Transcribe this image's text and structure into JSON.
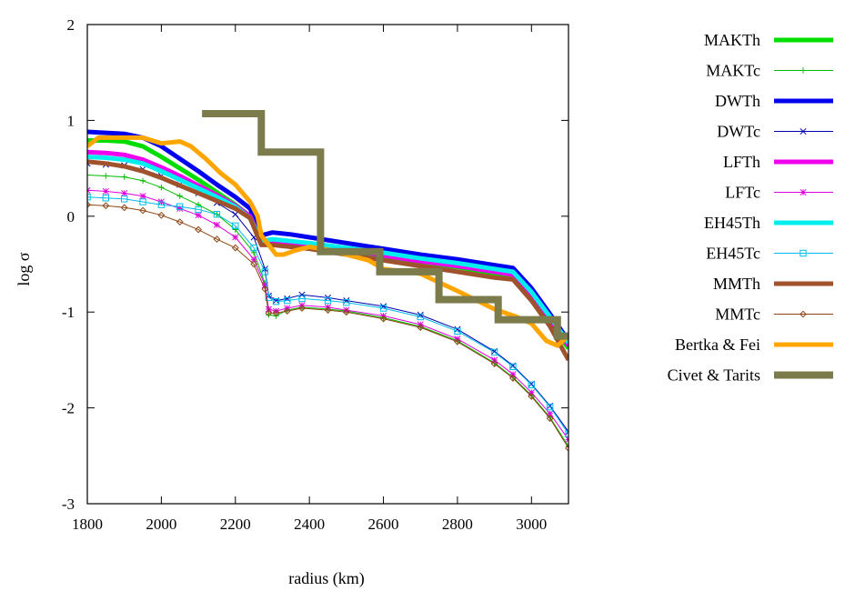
{
  "chart_data": {
    "type": "line",
    "xlabel": "radius (km)",
    "ylabel": "log σ",
    "xlim": [
      1800,
      3100
    ],
    "ylim": [
      -3,
      2
    ],
    "xticks": [
      1800,
      2000,
      2200,
      2400,
      2600,
      2800,
      3000
    ],
    "yticks": [
      -3,
      -2,
      -1,
      0,
      1,
      2
    ],
    "grid": false,
    "legend_position": "right",
    "series": [
      {
        "name": "MAKTh",
        "color": "#00dd00",
        "width": 5,
        "marker": "none",
        "points": [
          [
            1800,
            0.79
          ],
          [
            1850,
            0.79
          ],
          [
            1900,
            0.78
          ],
          [
            1950,
            0.73
          ],
          [
            2000,
            0.62
          ],
          [
            2050,
            0.5
          ],
          [
            2100,
            0.38
          ],
          [
            2150,
            0.25
          ],
          [
            2200,
            0.12
          ],
          [
            2240,
            0.0
          ],
          [
            2270,
            -0.26
          ],
          [
            2300,
            -0.28
          ],
          [
            2350,
            -0.28
          ],
          [
            2400,
            -0.3
          ],
          [
            2500,
            -0.36
          ],
          [
            2600,
            -0.42
          ],
          [
            2700,
            -0.48
          ],
          [
            2800,
            -0.53
          ],
          [
            2900,
            -0.6
          ],
          [
            2950,
            -0.63
          ],
          [
            3000,
            -0.85
          ],
          [
            3050,
            -1.1
          ],
          [
            3100,
            -1.38
          ]
        ]
      },
      {
        "name": "MAKTc",
        "color": "#00bb00",
        "width": 1,
        "marker": "plus",
        "points": [
          [
            1800,
            0.43
          ],
          [
            1850,
            0.42
          ],
          [
            1900,
            0.41
          ],
          [
            1950,
            0.37
          ],
          [
            2000,
            0.3
          ],
          [
            2050,
            0.21
          ],
          [
            2100,
            0.12
          ],
          [
            2150,
            0.02
          ],
          [
            2200,
            -0.14
          ],
          [
            2250,
            -0.38
          ],
          [
            2280,
            -0.7
          ],
          [
            2290,
            -1.03
          ],
          [
            2310,
            -1.04
          ],
          [
            2340,
            -0.98
          ],
          [
            2380,
            -0.95
          ],
          [
            2450,
            -0.97
          ],
          [
            2500,
            -0.99
          ],
          [
            2600,
            -1.06
          ],
          [
            2700,
            -1.15
          ],
          [
            2800,
            -1.3
          ],
          [
            2900,
            -1.53
          ],
          [
            2950,
            -1.68
          ],
          [
            3000,
            -1.87
          ],
          [
            3050,
            -2.1
          ],
          [
            3100,
            -2.4
          ]
        ]
      },
      {
        "name": "DWTh",
        "color": "#0000ee",
        "width": 5,
        "marker": "none",
        "points": [
          [
            1800,
            0.88
          ],
          [
            1850,
            0.87
          ],
          [
            1900,
            0.86
          ],
          [
            1950,
            0.82
          ],
          [
            2000,
            0.73
          ],
          [
            2050,
            0.6
          ],
          [
            2100,
            0.47
          ],
          [
            2150,
            0.33
          ],
          [
            2200,
            0.2
          ],
          [
            2240,
            0.08
          ],
          [
            2270,
            -0.2
          ],
          [
            2300,
            -0.17
          ],
          [
            2350,
            -0.19
          ],
          [
            2400,
            -0.22
          ],
          [
            2500,
            -0.28
          ],
          [
            2600,
            -0.34
          ],
          [
            2700,
            -0.4
          ],
          [
            2800,
            -0.45
          ],
          [
            2900,
            -0.51
          ],
          [
            2950,
            -0.54
          ],
          [
            3000,
            -0.75
          ],
          [
            3050,
            -1.02
          ],
          [
            3100,
            -1.3
          ]
        ]
      },
      {
        "name": "DWTc",
        "color": "#0000aa",
        "width": 1,
        "marker": "x",
        "points": [
          [
            1800,
            0.55
          ],
          [
            1850,
            0.54
          ],
          [
            1900,
            0.53
          ],
          [
            1950,
            0.49
          ],
          [
            2000,
            0.42
          ],
          [
            2050,
            0.33
          ],
          [
            2100,
            0.24
          ],
          [
            2150,
            0.14
          ],
          [
            2200,
            0.02
          ],
          [
            2250,
            -0.22
          ],
          [
            2280,
            -0.55
          ],
          [
            2290,
            -0.83
          ],
          [
            2310,
            -0.88
          ],
          [
            2340,
            -0.86
          ],
          [
            2380,
            -0.82
          ],
          [
            2450,
            -0.85
          ],
          [
            2500,
            -0.88
          ],
          [
            2600,
            -0.94
          ],
          [
            2700,
            -1.03
          ],
          [
            2800,
            -1.18
          ],
          [
            2900,
            -1.41
          ],
          [
            2950,
            -1.56
          ],
          [
            3000,
            -1.75
          ],
          [
            3050,
            -1.98
          ],
          [
            3100,
            -2.25
          ]
        ]
      },
      {
        "name": "LFTh",
        "color": "#ee00ee",
        "width": 5,
        "marker": "none",
        "points": [
          [
            1800,
            0.67
          ],
          [
            1850,
            0.66
          ],
          [
            1900,
            0.64
          ],
          [
            1950,
            0.59
          ],
          [
            2000,
            0.51
          ],
          [
            2050,
            0.42
          ],
          [
            2100,
            0.32
          ],
          [
            2150,
            0.22
          ],
          [
            2200,
            0.11
          ],
          [
            2240,
            0.0
          ],
          [
            2270,
            -0.27
          ],
          [
            2300,
            -0.26
          ],
          [
            2350,
            -0.28
          ],
          [
            2400,
            -0.3
          ],
          [
            2500,
            -0.35
          ],
          [
            2600,
            -0.41
          ],
          [
            2700,
            -0.47
          ],
          [
            2800,
            -0.52
          ],
          [
            2900,
            -0.58
          ],
          [
            2950,
            -0.61
          ],
          [
            3000,
            -0.82
          ],
          [
            3050,
            -1.08
          ],
          [
            3100,
            -1.35
          ]
        ]
      },
      {
        "name": "LFTc",
        "color": "#dd00dd",
        "width": 1,
        "marker": "star",
        "points": [
          [
            1800,
            0.27
          ],
          [
            1850,
            0.26
          ],
          [
            1900,
            0.24
          ],
          [
            1950,
            0.21
          ],
          [
            2000,
            0.15
          ],
          [
            2050,
            0.08
          ],
          [
            2100,
            0.01
          ],
          [
            2150,
            -0.09
          ],
          [
            2200,
            -0.22
          ],
          [
            2250,
            -0.45
          ],
          [
            2280,
            -0.72
          ],
          [
            2290,
            -0.97
          ],
          [
            2310,
            -0.99
          ],
          [
            2340,
            -0.96
          ],
          [
            2380,
            -0.93
          ],
          [
            2450,
            -0.95
          ],
          [
            2500,
            -0.98
          ],
          [
            2600,
            -1.04
          ],
          [
            2700,
            -1.13
          ],
          [
            2800,
            -1.28
          ],
          [
            2900,
            -1.5
          ],
          [
            2950,
            -1.65
          ],
          [
            3000,
            -1.84
          ],
          [
            3050,
            -2.06
          ],
          [
            3100,
            -2.33
          ]
        ]
      },
      {
        "name": "EH45Th",
        "color": "#00eeee",
        "width": 5,
        "marker": "none",
        "points": [
          [
            1800,
            0.62
          ],
          [
            1850,
            0.61
          ],
          [
            1900,
            0.59
          ],
          [
            1950,
            0.55
          ],
          [
            2000,
            0.47
          ],
          [
            2050,
            0.38
          ],
          [
            2100,
            0.29
          ],
          [
            2150,
            0.2
          ],
          [
            2200,
            0.1
          ],
          [
            2240,
            -0.02
          ],
          [
            2270,
            -0.26
          ],
          [
            2300,
            -0.24
          ],
          [
            2350,
            -0.26
          ],
          [
            2400,
            -0.28
          ],
          [
            2500,
            -0.33
          ],
          [
            2600,
            -0.38
          ],
          [
            2700,
            -0.44
          ],
          [
            2800,
            -0.49
          ],
          [
            2900,
            -0.55
          ],
          [
            2950,
            -0.58
          ],
          [
            3000,
            -0.79
          ],
          [
            3050,
            -1.05
          ],
          [
            3100,
            -1.32
          ]
        ]
      },
      {
        "name": "EH45Tc",
        "color": "#00bbee",
        "width": 1,
        "marker": "square",
        "points": [
          [
            1800,
            0.2
          ],
          [
            1850,
            0.19
          ],
          [
            1900,
            0.18
          ],
          [
            1950,
            0.15
          ],
          [
            2000,
            0.12
          ],
          [
            2050,
            0.1
          ],
          [
            2100,
            0.07
          ],
          [
            2150,
            0.02
          ],
          [
            2200,
            -0.1
          ],
          [
            2250,
            -0.33
          ],
          [
            2280,
            -0.58
          ],
          [
            2290,
            -0.85
          ],
          [
            2310,
            -0.89
          ],
          [
            2340,
            -0.88
          ],
          [
            2380,
            -0.86
          ],
          [
            2450,
            -0.88
          ],
          [
            2500,
            -0.9
          ],
          [
            2600,
            -0.96
          ],
          [
            2700,
            -1.05
          ],
          [
            2800,
            -1.2
          ],
          [
            2900,
            -1.42
          ],
          [
            2950,
            -1.57
          ],
          [
            3000,
            -1.76
          ],
          [
            3050,
            -1.99
          ],
          [
            3100,
            -2.27
          ]
        ]
      },
      {
        "name": "MMTh",
        "color": "#a0522d",
        "width": 5,
        "marker": "none",
        "points": [
          [
            1800,
            0.57
          ],
          [
            1850,
            0.55
          ],
          [
            1900,
            0.52
          ],
          [
            1950,
            0.47
          ],
          [
            2000,
            0.4
          ],
          [
            2050,
            0.32
          ],
          [
            2100,
            0.24
          ],
          [
            2150,
            0.16
          ],
          [
            2200,
            0.08
          ],
          [
            2240,
            -0.02
          ],
          [
            2270,
            -0.3
          ],
          [
            2300,
            -0.3
          ],
          [
            2350,
            -0.32
          ],
          [
            2400,
            -0.34
          ],
          [
            2500,
            -0.4
          ],
          [
            2600,
            -0.46
          ],
          [
            2700,
            -0.52
          ],
          [
            2800,
            -0.58
          ],
          [
            2900,
            -0.64
          ],
          [
            2950,
            -0.66
          ],
          [
            3000,
            -0.88
          ],
          [
            3050,
            -1.15
          ],
          [
            3100,
            -1.5
          ]
        ]
      },
      {
        "name": "MMTc",
        "color": "#8b4513",
        "width": 1,
        "marker": "diamond",
        "points": [
          [
            1800,
            0.12
          ],
          [
            1850,
            0.11
          ],
          [
            1900,
            0.09
          ],
          [
            1950,
            0.06
          ],
          [
            2000,
            0.01
          ],
          [
            2050,
            -0.06
          ],
          [
            2100,
            -0.14
          ],
          [
            2150,
            -0.24
          ],
          [
            2200,
            -0.33
          ],
          [
            2250,
            -0.5
          ],
          [
            2280,
            -0.76
          ],
          [
            2290,
            -1.01
          ],
          [
            2310,
            -1.01
          ],
          [
            2340,
            -0.99
          ],
          [
            2380,
            -0.96
          ],
          [
            2450,
            -0.98
          ],
          [
            2500,
            -1.0
          ],
          [
            2600,
            -1.07
          ],
          [
            2700,
            -1.16
          ],
          [
            2800,
            -1.31
          ],
          [
            2900,
            -1.54
          ],
          [
            2950,
            -1.69
          ],
          [
            3000,
            -1.88
          ],
          [
            3050,
            -2.11
          ],
          [
            3100,
            -2.42
          ]
        ]
      },
      {
        "name": "Bertka & Fei",
        "color": "#ffa500",
        "width": 5,
        "marker": "none",
        "points": [
          [
            1800,
            0.73
          ],
          [
            1830,
            0.82
          ],
          [
            1900,
            0.82
          ],
          [
            1950,
            0.82
          ],
          [
            2000,
            0.76
          ],
          [
            2050,
            0.78
          ],
          [
            2080,
            0.73
          ],
          [
            2120,
            0.6
          ],
          [
            2160,
            0.45
          ],
          [
            2200,
            0.33
          ],
          [
            2240,
            0.15
          ],
          [
            2260,
            0.0
          ],
          [
            2270,
            -0.2
          ],
          [
            2290,
            -0.3
          ],
          [
            2310,
            -0.4
          ],
          [
            2330,
            -0.4
          ],
          [
            2360,
            -0.36
          ],
          [
            2400,
            -0.32
          ],
          [
            2450,
            -0.35
          ],
          [
            2500,
            -0.4
          ],
          [
            2560,
            -0.46
          ],
          [
            2600,
            -0.55
          ],
          [
            2700,
            -0.6
          ],
          [
            2800,
            -0.78
          ],
          [
            2900,
            -0.97
          ],
          [
            2960,
            -1.05
          ],
          [
            3000,
            -1.12
          ],
          [
            3040,
            -1.3
          ],
          [
            3070,
            -1.35
          ],
          [
            3100,
            -1.25
          ]
        ]
      },
      {
        "name": "Civet & Tarits",
        "color": "#7b7b4c",
        "width": 8,
        "marker": "none",
        "points": [
          [
            2110,
            1.07
          ],
          [
            2270,
            1.07
          ],
          [
            2270,
            0.67
          ],
          [
            2430,
            0.67
          ],
          [
            2430,
            -0.37
          ],
          [
            2590,
            -0.37
          ],
          [
            2590,
            -0.58
          ],
          [
            2750,
            -0.58
          ],
          [
            2750,
            -0.87
          ],
          [
            2910,
            -0.87
          ],
          [
            2910,
            -1.08
          ],
          [
            3070,
            -1.08
          ],
          [
            3070,
            -1.25
          ],
          [
            3100,
            -1.25
          ]
        ]
      }
    ]
  }
}
